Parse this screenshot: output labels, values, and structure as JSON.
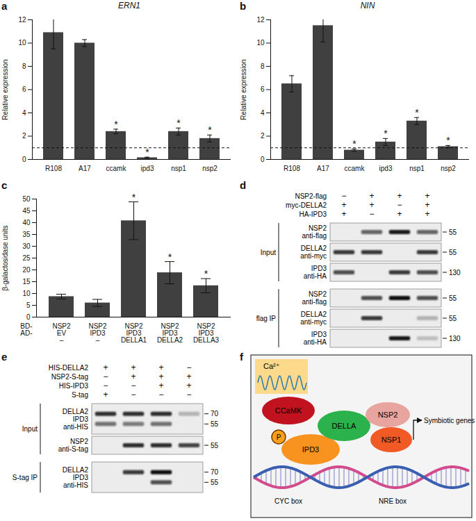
{
  "chart_data": [
    {
      "type": "bar",
      "panel": "a",
      "title": "ERN1",
      "y_label": "Relative expression",
      "categories": [
        "R108",
        "A17",
        "ccamk",
        "ipd3",
        "nsp1",
        "nsp2"
      ],
      "values": [
        10.9,
        10.0,
        2.4,
        0.15,
        2.4,
        1.8
      ],
      "errors": [
        1.4,
        0.3,
        0.2,
        0.05,
        0.3,
        0.3
      ],
      "significance": [
        null,
        null,
        "*",
        "*",
        "*",
        "*"
      ],
      "baseline": 1,
      "color": "#404040",
      "ylim": [
        0,
        12
      ],
      "yticks": [
        0,
        2,
        4,
        6,
        8,
        10,
        12
      ]
    },
    {
      "type": "bar",
      "panel": "b",
      "title": "NIN",
      "y_label": "Relative expression",
      "categories": [
        "R108",
        "A17",
        "ccamk",
        "ipd3",
        "nsp1",
        "nsp2"
      ],
      "values": [
        6.5,
        11.5,
        0.8,
        1.5,
        3.3,
        1.1
      ],
      "errors": [
        0.7,
        1.4,
        0.1,
        0.3,
        0.3,
        0.1
      ],
      "significance": [
        null,
        null,
        "*",
        "*",
        "*",
        "*"
      ],
      "baseline": 1,
      "color": "#404040",
      "ylim": [
        0,
        12
      ],
      "yticks": [
        0,
        2,
        4,
        6,
        8,
        10,
        12
      ]
    },
    {
      "type": "bar",
      "panel": "c",
      "y_label": "β-galactosidase units",
      "categories": [
        null,
        null,
        null,
        null,
        null
      ],
      "category_rows": [
        {
          "label": "BD-",
          "values": [
            "NSP2",
            "NSP2",
            "NSP2",
            "NSP2",
            "NSP2"
          ]
        },
        {
          "label": "AD-",
          "values": [
            "EV",
            "IPD3",
            "IPD3",
            "IPD3",
            "IPD3"
          ]
        },
        {
          "values": [
            "–",
            "–",
            "DELLA1",
            "DELLA2",
            "DELLA3"
          ]
        }
      ],
      "values": [
        8.7,
        6.0,
        40.8,
        18.8,
        13.3
      ],
      "errors": [
        1.0,
        1.5,
        8.0,
        4.7,
        3.0
      ],
      "significance": [
        null,
        null,
        "*",
        "*",
        "*"
      ],
      "color": "#404040",
      "ylim": [
        0,
        50
      ],
      "yticks": [
        0,
        5,
        10,
        15,
        20,
        25,
        30,
        35,
        40,
        45,
        50
      ]
    }
  ],
  "blots": [
    {
      "panel": "d",
      "conditions": [
        {
          "label": "NSP2-flag",
          "lanes": [
            "−",
            "+",
            "+",
            "+"
          ]
        },
        {
          "label": "myc-DELLA2",
          "lanes": [
            "+",
            "+",
            "−",
            "+"
          ]
        },
        {
          "label": "HA-IPD3",
          "lanes": [
            "+",
            "−",
            "+",
            "+"
          ]
        }
      ],
      "sections": [
        {
          "label": "Input",
          "blots": [
            {
              "labels": [
                "NSP2",
                "anti-flag"
              ],
              "markers": [
                55
              ],
              "bands": [
                [
                  0,
                  0.6,
                  0.95,
                  0.6
                ]
              ]
            },
            {
              "labels": [
                "DELLA2",
                "anti-myc"
              ],
              "markers": [
                55
              ],
              "bands": [
                [
                  0.8,
                  0.8,
                  0,
                  0.8
                ]
              ]
            },
            {
              "labels": [
                "IPD3",
                "anti-HA"
              ],
              "markers": [
                130
              ],
              "bands": [
                [
                  0.7,
                  0,
                  0.8,
                  0.7
                ]
              ]
            }
          ]
        },
        {
          "label": "flag IP",
          "blots": [
            {
              "labels": [
                "NSP2",
                "anti-flag"
              ],
              "markers": [
                55
              ],
              "bands": [
                [
                  0,
                  0.7,
                  1,
                  0.7
                ]
              ]
            },
            {
              "labels": [
                "DELLA2",
                "anti-myc"
              ],
              "markers": [
                55
              ],
              "bands": [
                [
                  0,
                  0.8,
                  0,
                  0.25
                ]
              ]
            },
            {
              "labels": [
                "IPD3",
                "anti-HA"
              ],
              "markers": [
                130
              ],
              "bands": [
                [
                  0,
                  0,
                  0.95,
                  0.2
                ]
              ]
            }
          ]
        }
      ]
    },
    {
      "panel": "e",
      "conditions": [
        {
          "label": "HIS-DELLA2",
          "lanes": [
            "+",
            "+",
            "+",
            "−"
          ]
        },
        {
          "label": "NSP2-S-tag",
          "lanes": [
            "−",
            "+",
            "+",
            "+"
          ]
        },
        {
          "label": "HIS-IPD3",
          "lanes": [
            "−",
            "−",
            "+",
            "+"
          ]
        },
        {
          "label": "S-tag",
          "lanes": [
            "+",
            "−",
            "−",
            "−"
          ]
        }
      ],
      "sections": [
        {
          "label": "Input",
          "blots": [
            {
              "labels": [
                "DELLA2",
                "IPD3",
                "anti-HIS"
              ],
              "markers": [
                70,
                55
              ],
              "bands": [
                [
                  0.85,
                  0.85,
                  0.85,
                  0.25
                ],
                [
                  0.55,
                  0.5,
                  0.55,
                  0
                ]
              ]
            },
            {
              "labels": [
                "NSP2",
                "anti-S-tag"
              ],
              "markers": [
                55
              ],
              "bands": [
                [
                  0,
                  0.85,
                  0.85,
                  0.75
                ]
              ]
            }
          ]
        },
        {
          "label": "S-tag IP",
          "blots": [
            {
              "labels": [
                "DELLA2",
                "IPD3",
                "anti-HIS"
              ],
              "markers": [
                70,
                55
              ],
              "bands": [
                [
                  0,
                  0.8,
                  1,
                  0
                ],
                [
                  0,
                  0,
                  0.7,
                  0
                ]
              ]
            }
          ]
        }
      ]
    }
  ],
  "diagram": {
    "panel": "f",
    "calcium": "Ca²⁺",
    "nodes": [
      {
        "label": "CCaMK",
        "color": "#c1121f"
      },
      {
        "label": "P",
        "color": "#f7a01b"
      },
      {
        "label": "IPD3",
        "color": "#f7931e"
      },
      {
        "label": "DELLA",
        "color": "#2bb24c"
      },
      {
        "label": "NSP2",
        "color": "#e8a5a0"
      },
      {
        "label": "NSP1",
        "color": "#f15a24"
      }
    ],
    "output": "Symbiotic genes",
    "boxes": [
      "CYC box",
      "NRE box"
    ]
  }
}
